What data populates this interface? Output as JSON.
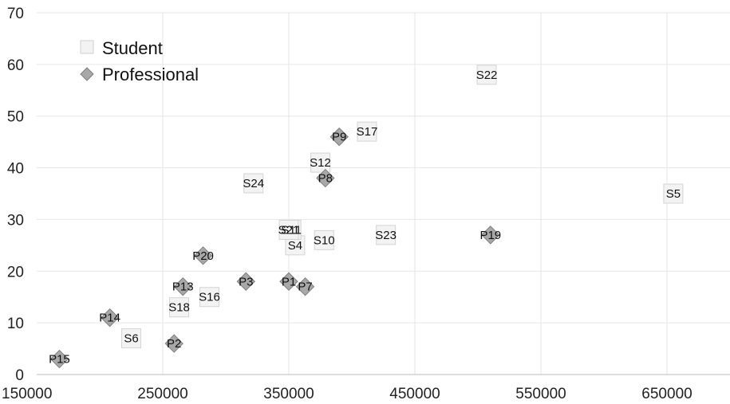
{
  "chart_data": {
    "type": "scatter",
    "title": "",
    "xlabel": "",
    "ylabel": "",
    "xlim": [
      150000,
      700000
    ],
    "ylim": [
      0,
      70
    ],
    "xticks": [
      150000,
      250000,
      350000,
      450000,
      550000,
      650000
    ],
    "yticks": [
      0,
      10,
      20,
      30,
      40,
      50,
      60,
      70
    ],
    "xtick_labels": [
      "150000",
      "250000",
      "350000",
      "450000",
      "550000",
      "650000"
    ],
    "ytick_labels": [
      "0",
      "10",
      "20",
      "30",
      "40",
      "50",
      "60",
      "70"
    ],
    "grid": true,
    "legend_position": "top-left",
    "series": [
      {
        "name": "Student",
        "marker": "square",
        "color": "#f2f2f2",
        "points": [
          {
            "label": "S4",
            "x": 355000,
            "y": 25
          },
          {
            "label": "S5",
            "x": 655000,
            "y": 35
          },
          {
            "label": "S6",
            "x": 225000,
            "y": 7
          },
          {
            "label": "S10",
            "x": 378000,
            "y": 26
          },
          {
            "label": "S11",
            "x": 352000,
            "y": 28
          },
          {
            "label": "S12",
            "x": 375000,
            "y": 41
          },
          {
            "label": "S16",
            "x": 287000,
            "y": 15
          },
          {
            "label": "S17",
            "x": 412000,
            "y": 47
          },
          {
            "label": "S18",
            "x": 263000,
            "y": 13
          },
          {
            "label": "S21",
            "x": 350000,
            "y": 28
          },
          {
            "label": "S22",
            "x": 507000,
            "y": 58
          },
          {
            "label": "S23",
            "x": 427000,
            "y": 27
          },
          {
            "label": "S24",
            "x": 322000,
            "y": 37
          }
        ]
      },
      {
        "name": "Professional",
        "marker": "diamond",
        "color": "#a6a6a6",
        "points": [
          {
            "label": "P1",
            "x": 350000,
            "y": 18
          },
          {
            "label": "P2",
            "x": 259000,
            "y": 6
          },
          {
            "label": "P3",
            "x": 316000,
            "y": 18
          },
          {
            "label": "P7",
            "x": 363000,
            "y": 17
          },
          {
            "label": "P8",
            "x": 379000,
            "y": 38
          },
          {
            "label": "P9",
            "x": 390000,
            "y": 46
          },
          {
            "label": "P13",
            "x": 266000,
            "y": 17
          },
          {
            "label": "P14",
            "x": 208000,
            "y": 11
          },
          {
            "label": "P15",
            "x": 168000,
            "y": 3
          },
          {
            "label": "P19",
            "x": 510000,
            "y": 27
          },
          {
            "label": "P20",
            "x": 282000,
            "y": 23
          }
        ]
      }
    ]
  }
}
